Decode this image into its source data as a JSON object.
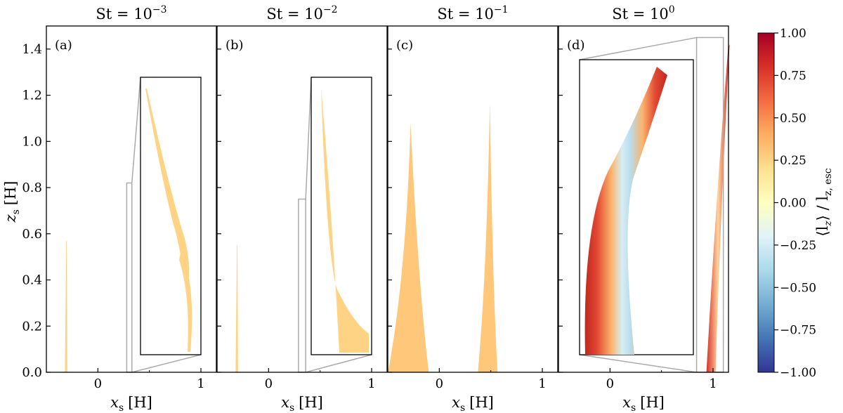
{
  "chart_data": {
    "type": "heatmap",
    "description_axes": {
      "xlabel_base": "x",
      "xlabel_sub": "s",
      "xlabel_unit": "[H]",
      "ylabel_base": "z",
      "ylabel_sub": "s",
      "ylabel_unit": "[H]",
      "xlim": [
        -0.5,
        1.15
      ],
      "ylim": [
        0,
        1.5
      ],
      "xticks": [
        "0",
        "1"
      ],
      "yticks": [
        "0.0",
        "0.2",
        "0.4",
        "0.6",
        "0.8",
        "1.0",
        "1.2",
        "1.4"
      ]
    },
    "panels": [
      {
        "label": "(a)",
        "title_base": "St = 10",
        "title_exp": "−3",
        "stokes": 0.001,
        "zoom_box_x": [
          0.28,
          0.33
        ],
        "zoom_box_z": [
          0.0,
          0.82
        ],
        "streams": [
          {
            "x_base": -0.31,
            "z_top": 0.57,
            "lz": 0.25
          }
        ],
        "inset_value": 0.25
      },
      {
        "label": "(b)",
        "title_base": "St = 10",
        "title_exp": "−2",
        "stokes": 0.01,
        "zoom_box_x": [
          0.29,
          0.36
        ],
        "zoom_box_z": [
          0.0,
          0.75
        ],
        "streams": [
          {
            "x_base": -0.31,
            "z_top": 0.55,
            "lz": 0.25
          }
        ],
        "inset_value": 0.25
      },
      {
        "label": "(c)",
        "title_base": "St = 10",
        "title_exp": "−1",
        "stokes": 0.1,
        "zoom_box_x": null,
        "zoom_box_z": null,
        "streams": [
          {
            "x_base": -0.3,
            "z_top": 1.08,
            "lz": 0.3
          },
          {
            "x_base": 0.47,
            "z_top": 1.17,
            "lz": 0.3
          }
        ],
        "inset_value": null
      },
      {
        "label": "(d)",
        "title_base": "St = 10",
        "title_exp": "0",
        "stokes": 1.0,
        "zoom_box_x": [
          0.84,
          1.1
        ],
        "zoom_box_z": [
          0.0,
          1.45
        ],
        "streams": [
          {
            "x_base": 0.97,
            "z_top": 1.42,
            "lz": 0.85
          }
        ],
        "inset_value": 0.85
      }
    ],
    "colorbar": {
      "label_left": "⟨l",
      "label_sub1": "z",
      "label_mid": "⟩ / l",
      "label_sub2": "z, esc",
      "vmin": -1.0,
      "vmax": 1.0,
      "ticks": [
        "1.00",
        "0.75",
        "0.50",
        "0.25",
        "0.00",
        "−0.25",
        "−0.50",
        "−0.75",
        "−1.00"
      ],
      "colormap": [
        "#313695",
        "#4575b4",
        "#74add1",
        "#abd9e9",
        "#e0f3f8",
        "#ffffbf",
        "#fee090",
        "#fdae61",
        "#f46d43",
        "#d73027",
        "#a50026"
      ]
    }
  }
}
